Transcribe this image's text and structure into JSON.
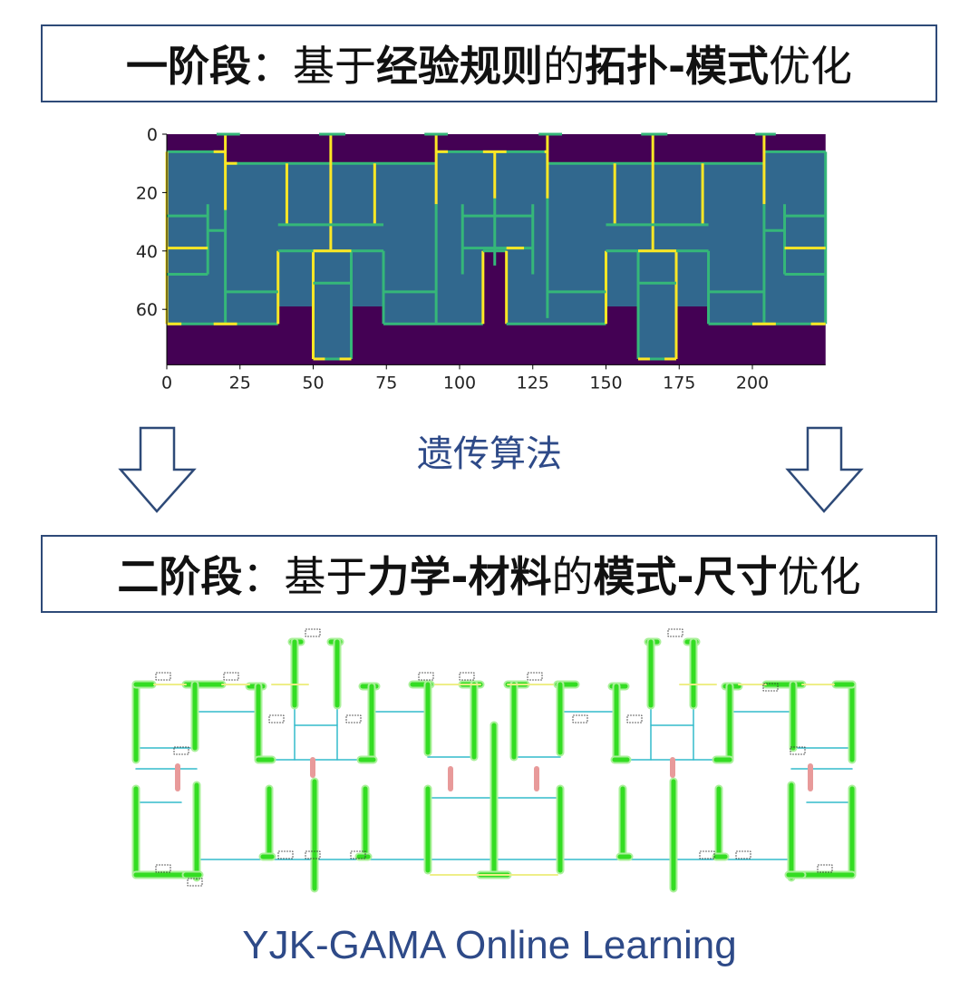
{
  "stage1": {
    "segments": [
      {
        "text": "一阶段",
        "bold": true
      },
      {
        "text": "：基于",
        "bold": false
      },
      {
        "text": "经验规则",
        "bold": true
      },
      {
        "text": "的",
        "bold": false
      },
      {
        "text": "拓扑-模式",
        "bold": true
      },
      {
        "text": "优化",
        "bold": false
      }
    ]
  },
  "stage2": {
    "segments": [
      {
        "text": "二阶段",
        "bold": true
      },
      {
        "text": "：基于",
        "bold": false
      },
      {
        "text": "力学-材料",
        "bold": true
      },
      {
        "text": "的",
        "bold": false
      },
      {
        "text": "模式-尺寸",
        "bold": true
      },
      {
        "text": "优化",
        "bold": false
      }
    ]
  },
  "method_label": "遗传算法",
  "footer": "YJK-GAMA Online Learning",
  "plot": {
    "x_ticks": [
      "0",
      "25",
      "50",
      "75",
      "100",
      "125",
      "150",
      "175",
      "200"
    ],
    "y_ticks": [
      "0",
      "20",
      "40",
      "60"
    ],
    "colors": {
      "void": "#440154",
      "floor": "#31688e",
      "wall": "#35b779",
      "wall_strong": "#fde725"
    }
  },
  "colors": {
    "accent": "#2e4a88",
    "structure": "#33dd22",
    "beam": "#33bbcc"
  }
}
